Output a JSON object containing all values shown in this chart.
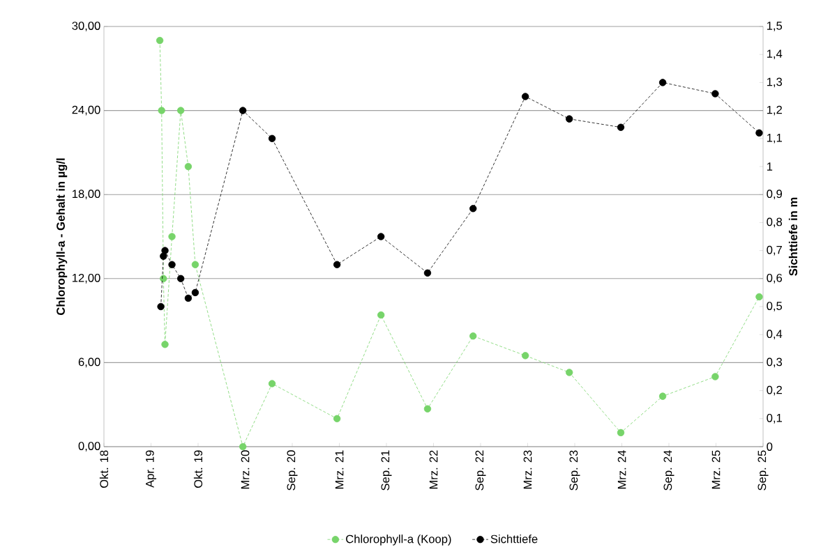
{
  "chart_data": {
    "type": "line",
    "ylabel": "Chlorophyll-a - Gehalt in µg/l",
    "y2label": "Sichttiefe in m",
    "series": [
      {
        "name": "Chlorophyll-a (Koop)",
        "color": "#77d46a",
        "x": [
          "2019-05-05",
          "2019-05-12",
          "2019-05-19",
          "2019-05-25",
          "2019-06-21",
          "2019-07-25",
          "2019-08-23",
          "2019-09-19",
          "2020-03-21",
          "2020-07-12",
          "2021-03-20",
          "2021-09-06",
          "2022-03-05",
          "2022-08-28",
          "2023-03-18",
          "2023-09-04",
          "2024-03-21",
          "2024-08-30",
          "2025-03-21",
          "2025-09-07"
        ],
        "values": [
          29.0,
          24.0,
          12.0,
          7.3,
          15.0,
          24.0,
          20.0,
          13.0,
          0.0,
          4.5,
          2.0,
          9.4,
          2.7,
          7.9,
          6.5,
          5.3,
          1.0,
          3.6,
          5.0,
          10.7
        ]
      },
      {
        "name": "Sichttiefe",
        "color": "#000000",
        "axis": "y2",
        "x": [
          "2019-05-09",
          "2019-05-19",
          "2019-05-25",
          "2019-06-21",
          "2019-07-25",
          "2019-08-23",
          "2019-09-19",
          "2020-03-21",
          "2020-07-12",
          "2021-03-20",
          "2021-09-06",
          "2022-03-05",
          "2022-08-28",
          "2023-03-18",
          "2023-09-04",
          "2024-03-21",
          "2024-08-30",
          "2025-03-21",
          "2025-09-07"
        ],
        "values": [
          0.5,
          0.68,
          0.7,
          0.65,
          0.6,
          0.53,
          0.55,
          1.2,
          1.1,
          0.65,
          0.75,
          0.62,
          0.85,
          1.25,
          1.17,
          1.14,
          1.3,
          1.26,
          1.12
        ]
      }
    ],
    "xlim": [
      "2018-10-01",
      "2025-09-22"
    ],
    "xticks": [
      {
        "value": "2018-10-01",
        "label": "Okt. 18"
      },
      {
        "value": "2019-04-01",
        "label": "Apr. 19"
      },
      {
        "value": "2019-09-30",
        "label": "Okt. 19"
      },
      {
        "value": "2020-03-30",
        "label": "Mrz. 20"
      },
      {
        "value": "2020-09-28",
        "label": "Sep. 20"
      },
      {
        "value": "2021-03-29",
        "label": "Mrz. 21"
      },
      {
        "value": "2021-09-27",
        "label": "Sep. 21"
      },
      {
        "value": "2022-03-28",
        "label": "Mrz. 22"
      },
      {
        "value": "2022-09-26",
        "label": "Sep. 22"
      },
      {
        "value": "2023-03-27",
        "label": "Mrz. 23"
      },
      {
        "value": "2023-09-25",
        "label": "Sep. 23"
      },
      {
        "value": "2024-03-25",
        "label": "Mrz. 24"
      },
      {
        "value": "2024-09-23",
        "label": "Sep. 24"
      },
      {
        "value": "2025-03-24",
        "label": "Mrz. 25"
      },
      {
        "value": "2025-09-22",
        "label": "Sep. 25"
      }
    ],
    "ylim": [
      0,
      30
    ],
    "yticks": [
      {
        "value": 0,
        "label": "0,00"
      },
      {
        "value": 6,
        "label": "6,00"
      },
      {
        "value": 12,
        "label": "12,00"
      },
      {
        "value": 18,
        "label": "18,00"
      },
      {
        "value": 24,
        "label": "24,00"
      },
      {
        "value": 30,
        "label": "30,00"
      }
    ],
    "y2lim": [
      0,
      1.5
    ],
    "y2ticks": [
      0,
      {
        "value": 0.1,
        "label": "0,1"
      },
      {
        "value": 0.2,
        "label": "0,2"
      },
      {
        "value": 0.3,
        "label": "0,3"
      },
      {
        "value": 0.4,
        "label": "0,4"
      },
      {
        "value": 0.5,
        "label": "0,5"
      },
      {
        "value": 0.6,
        "label": "0,6"
      },
      {
        "value": 0.7,
        "label": "0,7"
      },
      {
        "value": 0.8,
        "label": "0,8"
      },
      {
        "value": 0.9,
        "label": "0,9"
      },
      1,
      {
        "value": 1.1,
        "label": "1,1"
      },
      {
        "value": 1.2,
        "label": "1,2"
      },
      {
        "value": 1.3,
        "label": "1,3"
      },
      {
        "value": 1.4,
        "label": "1,4"
      },
      {
        "value": 1.5,
        "label": "1,5"
      }
    ],
    "grid": "y",
    "legend": "bottom",
    "marker": "circle",
    "line_style": "dashed"
  }
}
